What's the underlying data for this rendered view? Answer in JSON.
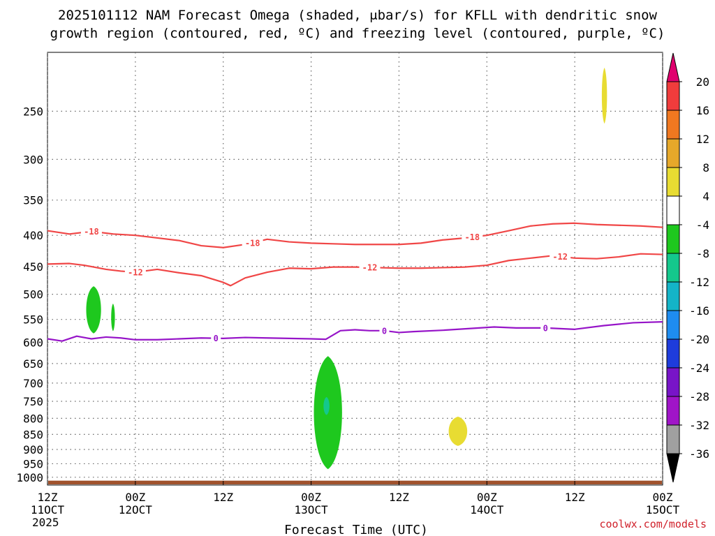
{
  "title_lines": [
    "2025101112 NAM Forecast Omega (shaded, μbar/s) for KFLL with dendritic snow",
    "growth region (contoured, red, ºC) and freezing level (contoured, purple, ºC)"
  ],
  "credit": "coolwx.com/models",
  "chart_data": {
    "type": "time-height cross-section",
    "xlabel": "Forecast Time (UTC)",
    "x_ticks": [
      {
        "label": [
          "12Z",
          "11OCT",
          "2025"
        ],
        "hour": 0
      },
      {
        "label": [
          "00Z",
          "12OCT"
        ],
        "hour": 12
      },
      {
        "label": [
          "12Z"
        ],
        "hour": 24
      },
      {
        "label": [
          "00Z",
          "13OCT"
        ],
        "hour": 36
      },
      {
        "label": [
          "12Z"
        ],
        "hour": 48
      },
      {
        "label": [
          "00Z",
          "14OCT"
        ],
        "hour": 60
      },
      {
        "label": [
          "12Z"
        ],
        "hour": 72
      },
      {
        "label": [
          "00Z",
          "15OCT"
        ],
        "hour": 84
      }
    ],
    "xlim_hours": [
      0,
      84
    ],
    "y_ticks_hPa": [
      250,
      300,
      350,
      400,
      450,
      500,
      550,
      600,
      650,
      700,
      750,
      800,
      850,
      900,
      950,
      1000
    ],
    "ylim_hPa": [
      1030,
      200
    ],
    "y_scale": "log-pressure",
    "grid": true,
    "colorbar": {
      "levels": [
        "20",
        "16",
        "12",
        "8",
        "4",
        "-4",
        "-8",
        "-12",
        "-16",
        "-20",
        "-24",
        "-28",
        "-32",
        "-36"
      ],
      "colors": [
        "#e0006e",
        "#f03c3c",
        "#f07820",
        "#e6a82a",
        "#e8dc32",
        "#ffffff",
        "#1ec81e",
        "#14c88c",
        "#14b4c8",
        "#1e8cf0",
        "#1e3cdc",
        "#7814c8",
        "#a014c8",
        "#a0a0a0",
        "#000000"
      ]
    },
    "contours": [
      {
        "name": "-18",
        "color": "#f04646",
        "labels_at_hours": [
          6,
          28,
          58
        ],
        "points": [
          [
            0,
            393
          ],
          [
            3,
            398
          ],
          [
            6,
            394
          ],
          [
            9,
            398
          ],
          [
            12,
            400
          ],
          [
            15,
            404
          ],
          [
            18,
            408
          ],
          [
            21,
            416
          ],
          [
            24,
            419
          ],
          [
            27,
            414
          ],
          [
            30,
            406
          ],
          [
            33,
            410
          ],
          [
            36,
            412
          ],
          [
            39,
            413
          ],
          [
            42,
            414
          ],
          [
            45,
            414
          ],
          [
            48,
            414
          ],
          [
            51,
            412
          ],
          [
            54,
            407
          ],
          [
            57,
            404
          ],
          [
            60,
            400
          ],
          [
            63,
            393
          ],
          [
            66,
            386
          ],
          [
            69,
            383
          ],
          [
            72,
            382
          ],
          [
            75,
            384
          ],
          [
            78,
            385
          ],
          [
            81,
            386
          ],
          [
            84,
            388
          ]
        ]
      },
      {
        "name": "-12",
        "color": "#f04646",
        "labels_at_hours": [
          12,
          44,
          70
        ],
        "points": [
          [
            0,
            446
          ],
          [
            3,
            445
          ],
          [
            5,
            448
          ],
          [
            8,
            455
          ],
          [
            10,
            458
          ],
          [
            12,
            460
          ],
          [
            15,
            455
          ],
          [
            18,
            461
          ],
          [
            21,
            466
          ],
          [
            24,
            478
          ],
          [
            25,
            484
          ],
          [
            27,
            470
          ],
          [
            30,
            460
          ],
          [
            33,
            453
          ],
          [
            36,
            454
          ],
          [
            39,
            451
          ],
          [
            42,
            451
          ],
          [
            45,
            452
          ],
          [
            48,
            453
          ],
          [
            51,
            453
          ],
          [
            54,
            452
          ],
          [
            57,
            451
          ],
          [
            60,
            448
          ],
          [
            63,
            440
          ],
          [
            66,
            436
          ],
          [
            69,
            432
          ],
          [
            72,
            436
          ],
          [
            75,
            437
          ],
          [
            78,
            434
          ],
          [
            81,
            429
          ],
          [
            84,
            430
          ]
        ]
      },
      {
        "name": "0",
        "color": "#9614c8",
        "labels_at_hours": [
          23,
          46,
          68
        ],
        "points": [
          [
            0,
            592
          ],
          [
            2,
            597
          ],
          [
            4,
            586
          ],
          [
            6,
            592
          ],
          [
            8,
            588
          ],
          [
            10,
            590
          ],
          [
            12,
            594
          ],
          [
            15,
            594
          ],
          [
            18,
            592
          ],
          [
            21,
            590
          ],
          [
            24,
            591
          ],
          [
            27,
            589
          ],
          [
            30,
            590
          ],
          [
            33,
            591
          ],
          [
            36,
            592
          ],
          [
            38,
            593
          ],
          [
            40,
            574
          ],
          [
            42,
            572
          ],
          [
            44,
            574
          ],
          [
            46,
            574
          ],
          [
            48,
            578
          ],
          [
            50,
            576
          ],
          [
            54,
            573
          ],
          [
            58,
            569
          ],
          [
            61,
            566
          ],
          [
            64,
            568
          ],
          [
            68,
            568
          ],
          [
            72,
            571
          ],
          [
            76,
            563
          ],
          [
            80,
            557
          ],
          [
            84,
            555
          ]
        ]
      }
    ],
    "shaded_regions": [
      {
        "value_range": "-4 to -8",
        "color": "#1ec81e",
        "hours": [
          5.3,
          7.3
        ],
        "hPa": [
          485,
          580
        ]
      },
      {
        "value_range": "-4 to -8",
        "color": "#1ec81e",
        "hours": [
          8.7,
          9.2
        ],
        "hPa": [
          518,
          575
        ]
      },
      {
        "value_range": "-4 to -8",
        "color": "#1ec81e",
        "hours": [
          36.4,
          40.2
        ],
        "hPa": [
          632,
          970
        ]
      },
      {
        "value_range": "-8 to -12",
        "color": "#14c88c",
        "hours": [
          37.7,
          38.5
        ],
        "hPa": [
          738,
          790
        ]
      },
      {
        "value_range": "4 to 8",
        "color": "#e8dc32",
        "hours": [
          54.8,
          57.3
        ],
        "hPa": [
          795,
          888
        ]
      },
      {
        "value_range": "4 to 8",
        "color": "#e8dc32",
        "hours": [
          75.7,
          76.4
        ],
        "hPa": [
          212,
          262
        ]
      }
    ],
    "terrain": {
      "color": "#a0522d",
      "hPa": 1013
    }
  }
}
